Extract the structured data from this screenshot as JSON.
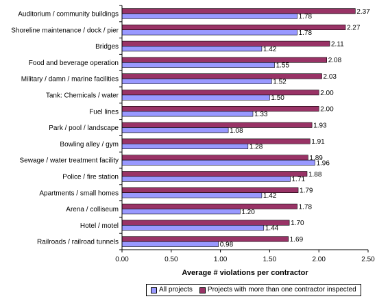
{
  "chart_data": {
    "type": "bar",
    "orientation": "horizontal",
    "categories": [
      "Auditorium / community buildings",
      "Shoreline maintenance / dock / pier",
      "Bridges",
      "Food and beverage operation",
      "Military / damn / marine facilities",
      "Tank: Chemicals / water",
      "Fuel lines",
      "Park / pool / landscape",
      "Bowling alley / gym",
      "Sewage / water treatment facility",
      "Police / fire station",
      "Apartments / small homes",
      "Arena / colliseum",
      "Hotel / motel",
      "Railroads / railroad tunnels"
    ],
    "series": [
      {
        "name": "All projects",
        "color": "#9999ff",
        "values": [
          1.78,
          1.78,
          1.42,
          1.55,
          1.52,
          1.5,
          1.33,
          1.08,
          1.28,
          1.96,
          1.71,
          1.42,
          1.2,
          1.44,
          0.98
        ],
        "labels": [
          "1.78",
          "1.78",
          "1.42",
          "1.55",
          "1.52",
          "1.50",
          "1.33",
          "1.08",
          "1.28",
          "1.96",
          "1.71",
          "1.42",
          "1.20",
          "1.44",
          "0.98"
        ]
      },
      {
        "name": "Projects with more than one contractor inspected",
        "color": "#993366",
        "values": [
          2.37,
          2.27,
          2.11,
          2.08,
          2.03,
          2.0,
          2.0,
          1.93,
          1.91,
          1.89,
          1.88,
          1.79,
          1.78,
          1.7,
          1.69
        ],
        "labels": [
          "2.37",
          "2.27",
          "2.11",
          "2.08",
          "2.03",
          "2.00",
          "2.00",
          "1.93",
          "1.91",
          "1.89",
          "1.88",
          "1.79",
          "1.78",
          "1.70",
          "1.69"
        ]
      }
    ],
    "xlabel": "Average # violations per contractor",
    "xlim": [
      0,
      2.5
    ],
    "xticks": [
      "0.00",
      "0.50",
      "1.00",
      "1.50",
      "2.00",
      "2.50"
    ],
    "grid": false,
    "legend_position": "bottom"
  }
}
